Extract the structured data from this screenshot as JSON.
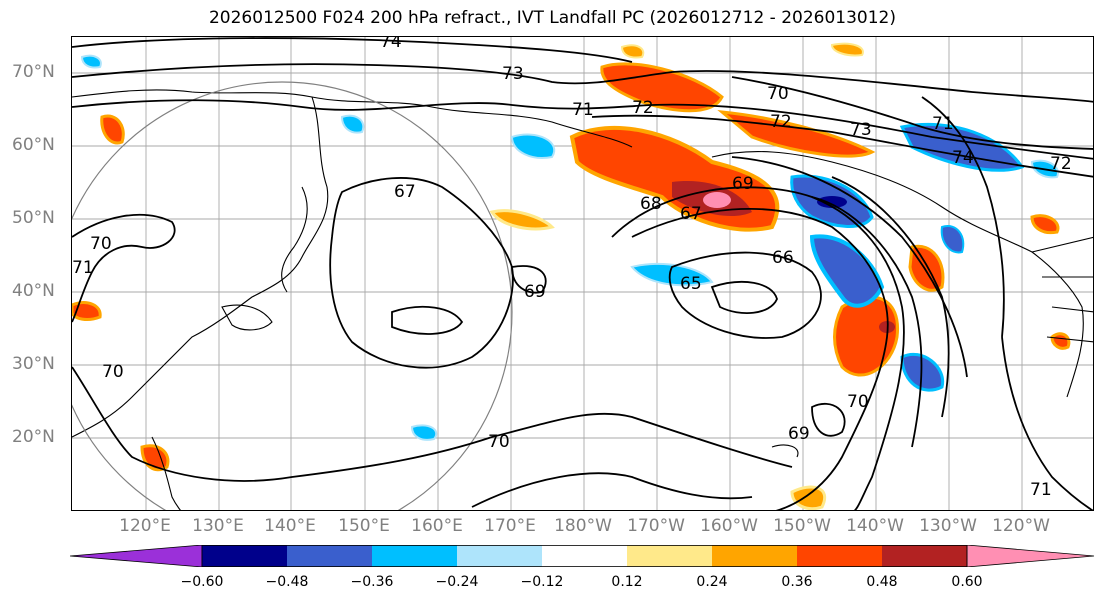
{
  "title": "2026012500 F024 200 hPa refract., IVT Landfall PC (2026012712 - 2026013012)",
  "lat_labels": [
    "70°N",
    "60°N",
    "50°N",
    "40°N",
    "30°N",
    "20°N"
  ],
  "lon_labels": [
    "120°E",
    "130°E",
    "140°E",
    "150°E",
    "160°E",
    "170°E",
    "180°W",
    "170°W",
    "160°W",
    "150°W",
    "140°W",
    "130°W",
    "120°W"
  ],
  "contour_labels": [
    "74",
    "73",
    "72",
    "71",
    "70",
    "73",
    "72",
    "71",
    "74",
    "72",
    "67",
    "68",
    "69",
    "67",
    "66",
    "65",
    "69",
    "70",
    "70",
    "69",
    "70",
    "71",
    "70",
    "71"
  ],
  "colorbar": {
    "ticks": [
      "−0.60",
      "−0.48",
      "−0.36",
      "−0.24",
      "−0.12",
      "0.12",
      "0.24",
      "0.36",
      "0.48",
      "0.60"
    ],
    "colors": [
      "#9b30d9",
      "#00008b",
      "#3a5fcd",
      "#00bfff",
      "#aee4fb",
      "#ffffff",
      "#ffe98a",
      "#ffa500",
      "#ff4500",
      "#b22222",
      "#ff8fb3"
    ]
  },
  "colors": {
    "grid": "#a9a9a9",
    "axis_label": "#808080",
    "circle": "#808080"
  }
}
